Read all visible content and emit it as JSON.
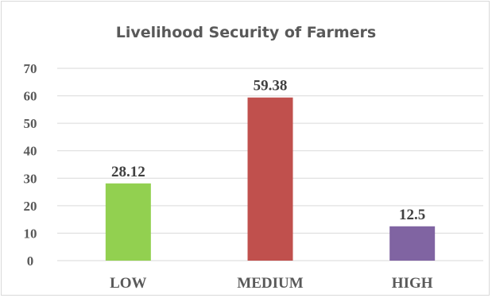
{
  "chart_data": {
    "type": "bar",
    "title": "Livelihood Security of Farmers",
    "xlabel": "",
    "ylabel": "",
    "categories": [
      "LOW",
      "MEDIUM",
      "HIGH"
    ],
    "values": [
      28.12,
      59.38,
      12.5
    ],
    "data_labels": [
      "28.12",
      "59.38",
      "12.5"
    ],
    "colors": [
      "#92d050",
      "#c0504d",
      "#8064a2"
    ],
    "ylim": [
      0,
      70
    ],
    "yticks": [
      0,
      10,
      20,
      30,
      40,
      50,
      60,
      70
    ],
    "grid": true,
    "legend": "none"
  }
}
